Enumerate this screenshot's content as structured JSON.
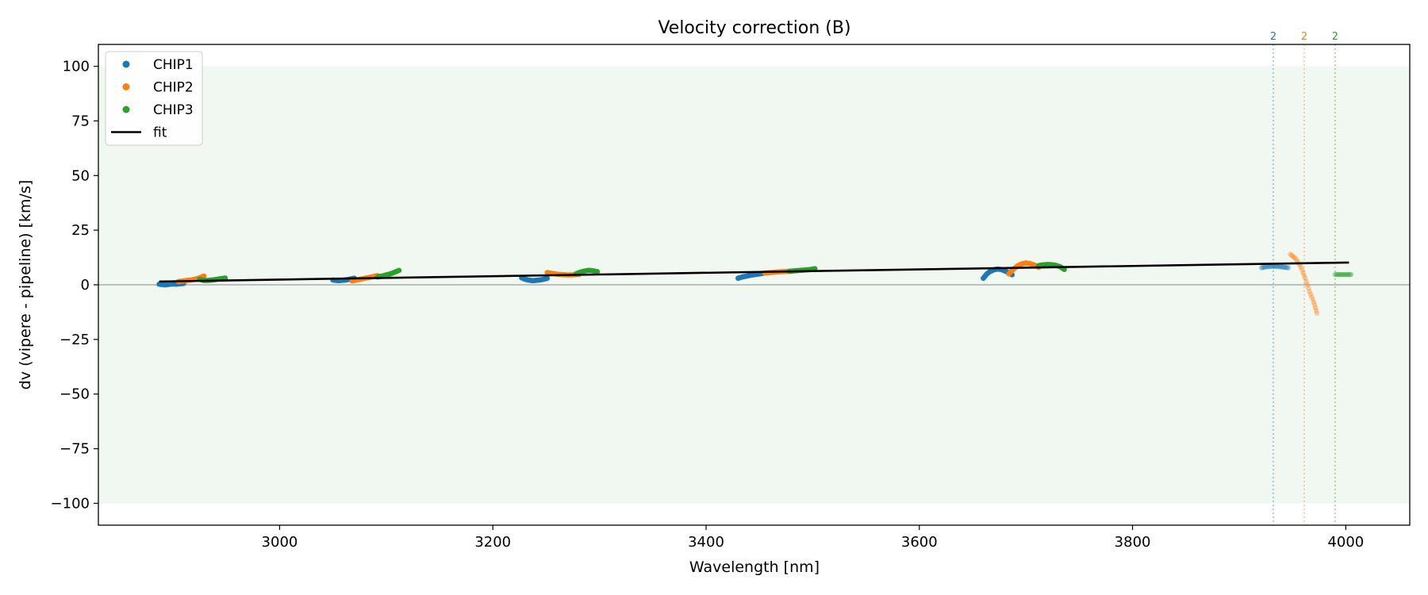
{
  "chart_data": {
    "type": "scatter",
    "title": "Velocity correction (B)",
    "xlabel": "Wavelength [nm]",
    "ylabel": "dv (vipere - pipeline) [km/s]",
    "xlim": [
      2830,
      4060
    ],
    "ylim": [
      -110,
      110
    ],
    "xticks": [
      3000,
      3200,
      3400,
      3600,
      3800,
      4000
    ],
    "yticks": [
      100,
      75,
      50,
      25,
      0,
      -25,
      -50,
      -75,
      -100
    ],
    "yticks_labels": [
      "100",
      "75",
      "50",
      "25",
      "0",
      "−25",
      "−50",
      "−75",
      "−100"
    ],
    "shaded_band": [
      -100,
      100
    ],
    "zero_line": 0,
    "grid": false,
    "legend": {
      "placement": "top-left",
      "entries": [
        "CHIP1",
        "CHIP2",
        "CHIP3",
        "fit"
      ]
    },
    "colors": {
      "CHIP1": "#1f77b4",
      "CHIP2": "#ff7f0e",
      "CHIP3": "#2ca02c",
      "fit": "#000000",
      "band": "#e8f4e8"
    },
    "series": [
      {
        "name": "CHIP1",
        "segments": [
          {
            "x": [
              2887,
              2890,
              2893,
              2896,
              2900,
              2903,
              2906,
              2910
            ],
            "y": [
              0.3,
              0.1,
              0.0,
              0.2,
              0.4,
              0.3,
              0.5,
              0.6
            ]
          },
          {
            "x": [
              3050,
              3053,
              3056,
              3060,
              3063,
              3066,
              3070
            ],
            "y": [
              2.2,
              2.0,
              1.9,
              2.1,
              2.3,
              2.6,
              3.0
            ]
          },
          {
            "x": [
              3227,
              3230,
              3233,
              3237,
              3240,
              3244,
              3248,
              3251
            ],
            "y": [
              3.2,
              2.6,
              2.2,
              1.9,
              2.0,
              2.2,
              2.6,
              3.0
            ]
          },
          {
            "x": [
              3430,
              3434,
              3438,
              3442,
              3446,
              3450,
              3453
            ],
            "y": [
              3.0,
              3.6,
              4.0,
              4.4,
              4.7,
              5.0,
              5.2
            ]
          },
          {
            "x": [
              3660,
              3663,
              3666,
              3670,
              3673,
              3677,
              3680,
              3684,
              3687
            ],
            "y": [
              3.0,
              4.8,
              6.0,
              6.9,
              7.2,
              7.0,
              6.4,
              5.5,
              4.6
            ]
          },
          {
            "x": [
              3921,
              3926,
              3931,
              3936,
              3941,
              3946
            ],
            "y": [
              7.8,
              8.3,
              8.5,
              8.4,
              8.1,
              7.8
            ],
            "faded": true
          }
        ]
      },
      {
        "name": "CHIP2",
        "segments": [
          {
            "x": [
              2905,
              2909,
              2913,
              2917,
              2921,
              2925,
              2929
            ],
            "y": [
              1.5,
              1.7,
              2.0,
              2.2,
              2.6,
              3.2,
              4.0
            ]
          },
          {
            "x": [
              3068,
              3072,
              3076,
              3080,
              3084,
              3088,
              3092
            ],
            "y": [
              1.8,
              2.2,
              2.6,
              3.0,
              3.4,
              3.8,
              4.2
            ]
          },
          {
            "x": [
              3251,
              3256,
              3261,
              3266,
              3271,
              3276,
              3281
            ],
            "y": [
              5.6,
              5.2,
              4.8,
              4.6,
              4.5,
              4.6,
              4.8
            ]
          },
          {
            "x": [
              3455,
              3460,
              3465,
              3470,
              3475,
              3480
            ],
            "y": [
              5.4,
              5.6,
              5.8,
              6.0,
              6.1,
              6.2
            ]
          },
          {
            "x": [
              3684,
              3688,
              3692,
              3696,
              3700,
              3704,
              3708,
              3712
            ],
            "y": [
              5.0,
              7.0,
              8.6,
              9.6,
              10.0,
              9.7,
              9.0,
              8.0
            ]
          },
          {
            "x": [
              3948,
              3953,
              3958,
              3962,
              3966,
              3970,
              3973
            ],
            "y": [
              14.0,
              12.0,
              8.0,
              3.0,
              -3.0,
              -8.0,
              -13.0
            ],
            "faded": true
          }
        ]
      },
      {
        "name": "CHIP3",
        "segments": [
          {
            "x": [
              2925,
              2929,
              2933,
              2937,
              2941,
              2945,
              2949
            ],
            "y": [
              2.5,
              2.0,
              2.0,
              2.2,
              2.5,
              2.8,
              3.1
            ]
          },
          {
            "x": [
              3092,
              3096,
              3100,
              3104,
              3108,
              3112
            ],
            "y": [
              3.6,
              4.0,
              4.5,
              5.0,
              5.8,
              6.6
            ]
          },
          {
            "x": [
              3278,
              3282,
              3286,
              3290,
              3294,
              3298
            ],
            "y": [
              5.0,
              5.8,
              6.3,
              6.6,
              6.4,
              6.0
            ]
          },
          {
            "x": [
              3478,
              3483,
              3488,
              3493,
              3498,
              3502
            ],
            "y": [
              6.2,
              6.4,
              6.6,
              6.8,
              7.0,
              7.4
            ]
          },
          {
            "x": [
              3712,
              3716,
              3720,
              3724,
              3728,
              3732,
              3736
            ],
            "y": [
              8.8,
              9.1,
              9.3,
              9.2,
              8.9,
              8.3,
              7.0
            ]
          },
          {
            "x": [
              3990,
              3995,
              4000,
              4005
            ],
            "y": [
              4.7,
              4.7,
              4.7,
              4.7
            ],
            "faded": true
          }
        ]
      }
    ],
    "fit": {
      "name": "fit",
      "x": [
        2887,
        4003
      ],
      "y": [
        1.5,
        10.2
      ]
    },
    "vertical_markers": [
      {
        "x": 3932,
        "label": "2",
        "series": "CHIP1"
      },
      {
        "x": 3961,
        "label": "2",
        "series": "CHIP2"
      },
      {
        "x": 3990,
        "label": "2",
        "series": "CHIP3"
      }
    ]
  }
}
